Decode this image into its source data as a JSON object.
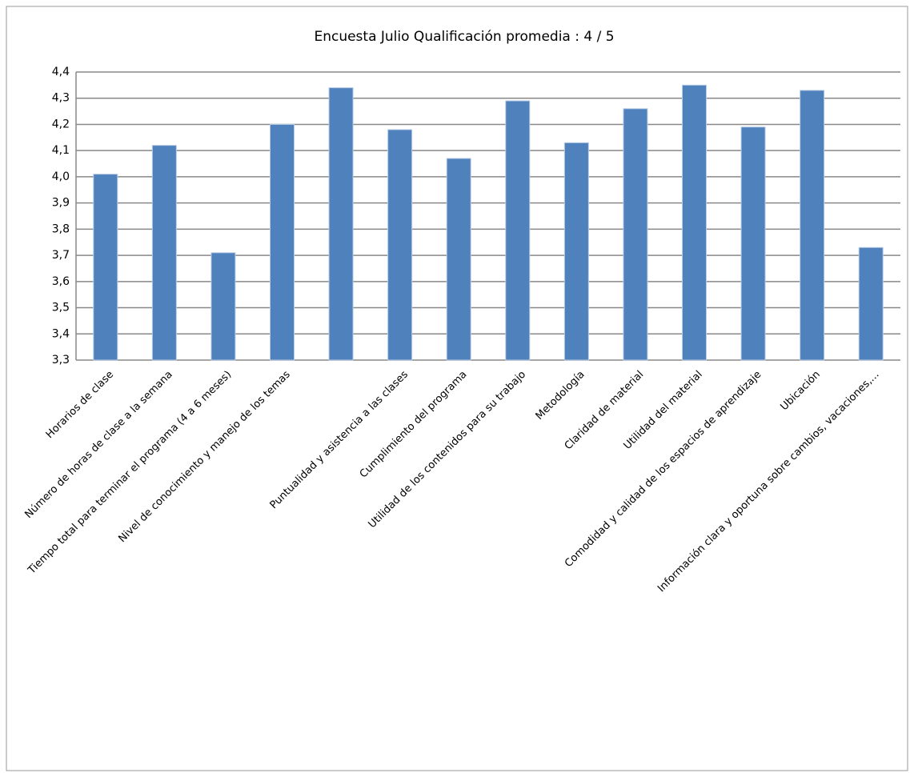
{
  "chart_data": {
    "type": "bar",
    "title": "Encuesta Julio Qualificación promedia : 4 / 5",
    "categories": [
      "Horarios de clase",
      "Número de horas de clase a la semana",
      "Tiempo total para terminar el programa (4 a 6 meses)",
      "Nivel de conocimiento y manejo de los temas",
      null,
      "Puntualidad y asistencia a las clases",
      "Cumplimiento del programa",
      "Utilidad de los contenidos para su trabajo",
      "Metodología",
      "Claridad de material",
      "Utilidad del material",
      "Comodidad y calidad de los espacios de aprendizaje",
      "Ubicación",
      "Información clara y oportuna sobre cambios, vacaciones,..."
    ],
    "values": [
      4.01,
      4.12,
      3.71,
      4.2,
      4.34,
      4.18,
      4.07,
      4.29,
      4.13,
      4.26,
      4.35,
      4.19,
      4.33,
      3.73
    ],
    "color": "#4f81bd",
    "ylim": [
      3.3,
      4.4
    ],
    "yticks": [
      {
        "value": 3.3,
        "label": "3,3"
      },
      {
        "value": 3.4,
        "label": "3,4"
      },
      {
        "value": 3.5,
        "label": "3,5"
      },
      {
        "value": 3.6,
        "label": "3,6"
      },
      {
        "value": 3.7,
        "label": "3,7"
      },
      {
        "value": 3.8,
        "label": "3,8"
      },
      {
        "value": 3.9,
        "label": "3,9"
      },
      {
        "value": 4.0,
        "label": "4,0"
      },
      {
        "value": 4.1,
        "label": "4,1"
      },
      {
        "value": 4.2,
        "label": "4,2"
      },
      {
        "value": 4.3,
        "label": "4,3"
      },
      {
        "value": 4.4,
        "label": "4,4"
      }
    ],
    "grid": true
  }
}
